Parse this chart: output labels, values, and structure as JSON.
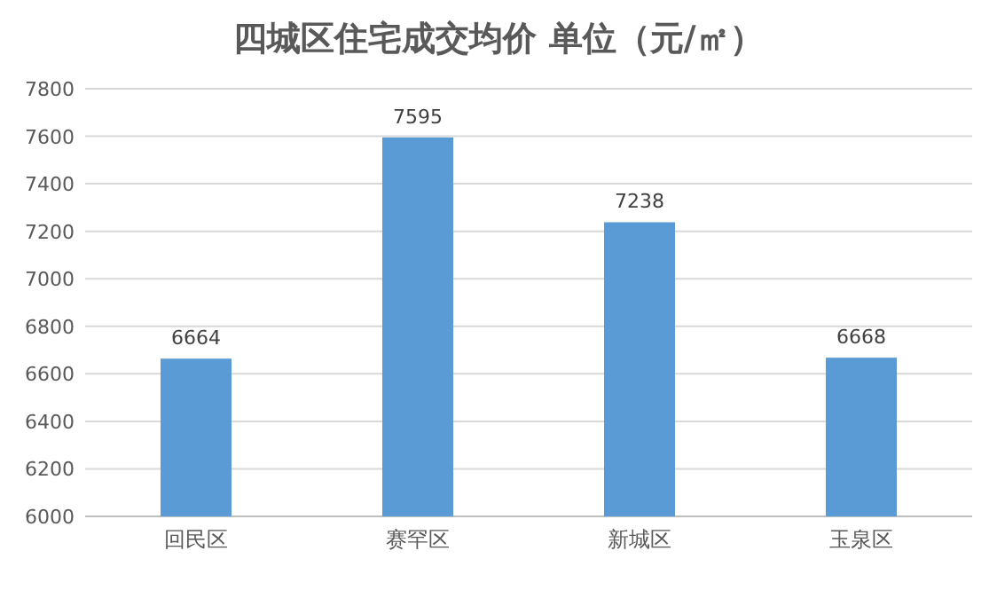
{
  "chart_data": {
    "type": "bar",
    "title": "四城区住宅成交均价 单位（元/㎡）",
    "categories": [
      "回民区",
      "赛罕区",
      "新城区",
      "玉泉区"
    ],
    "values": [
      6664,
      7595,
      7238,
      6668
    ],
    "color": "#5b9bd5",
    "ylim": [
      6000,
      7800
    ],
    "yticks": [
      6000,
      6200,
      6400,
      6600,
      6800,
      7000,
      7200,
      7400,
      7600,
      7800
    ],
    "grid": "y",
    "data_labels": true
  }
}
